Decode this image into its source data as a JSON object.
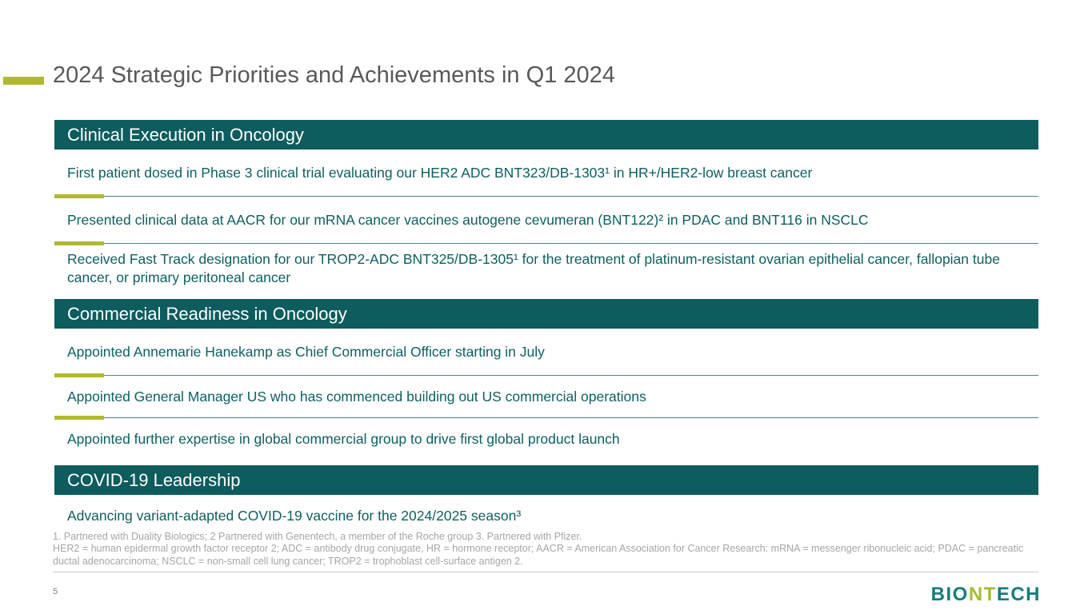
{
  "slide": {
    "title": "2024 Strategic Priorities and Achievements in Q1 2024",
    "page_number": "5"
  },
  "sections": [
    {
      "header": "Clinical Execution in Oncology",
      "items": [
        "First patient dosed in Phase 3 clinical trial evaluating our HER2 ADC BNT323/DB-1303¹ in HR+/HER2-low breast cancer",
        "Presented clinical data at AACR for our mRNA cancer vaccines autogene cevumeran (BNT122)² in PDAC and BNT116 in NSCLC",
        "Received Fast Track designation for our TROP2-ADC BNT325/DB-1305¹ for the treatment of platinum-resistant ovarian epithelial cancer, fallopian tube cancer, or primary peritoneal cancer"
      ]
    },
    {
      "header": "Commercial Readiness in Oncology",
      "items": [
        "Appointed Annemarie Hanekamp as Chief Commercial Officer starting in July",
        "Appointed General Manager US who has commenced building out US commercial operations",
        "Appointed further expertise in global commercial group to drive first global product launch"
      ]
    },
    {
      "header": "COVID-19 Leadership",
      "items": [
        "Advancing variant-adapted COVID-19 vaccine for the 2024/2025 season³"
      ]
    }
  ],
  "footnotes": {
    "line1": "1. Partnered with Duality Biologics; 2 Partnered with Genentech, a member of the Roche group 3. Partnered with Pfizer.",
    "line2": "HER2 = human epidermal growth factor receptor 2; ADC = antibody drug conjugate, HR = hormone receptor; AACR  = American Association for Cancer Research:  mRNA = messenger ribonucleic acid; PDAC = pancreatic ductal adenocarcinoma; NSCLC = non-small cell lung cancer;  TROP2 = trophoblast cell-surface antigen 2."
  },
  "logo": {
    "part1": "BIO",
    "part2": "NT",
    "part3": "ECH"
  },
  "colors": {
    "teal_header": "#0d5c5e",
    "teal_text": "#0e6062",
    "accent_olive": "#b1b932",
    "title_gray": "#595959",
    "footnote_gray": "#a6a6a6",
    "logo_teal": "#157c7c",
    "logo_green": "#a4bd36"
  }
}
